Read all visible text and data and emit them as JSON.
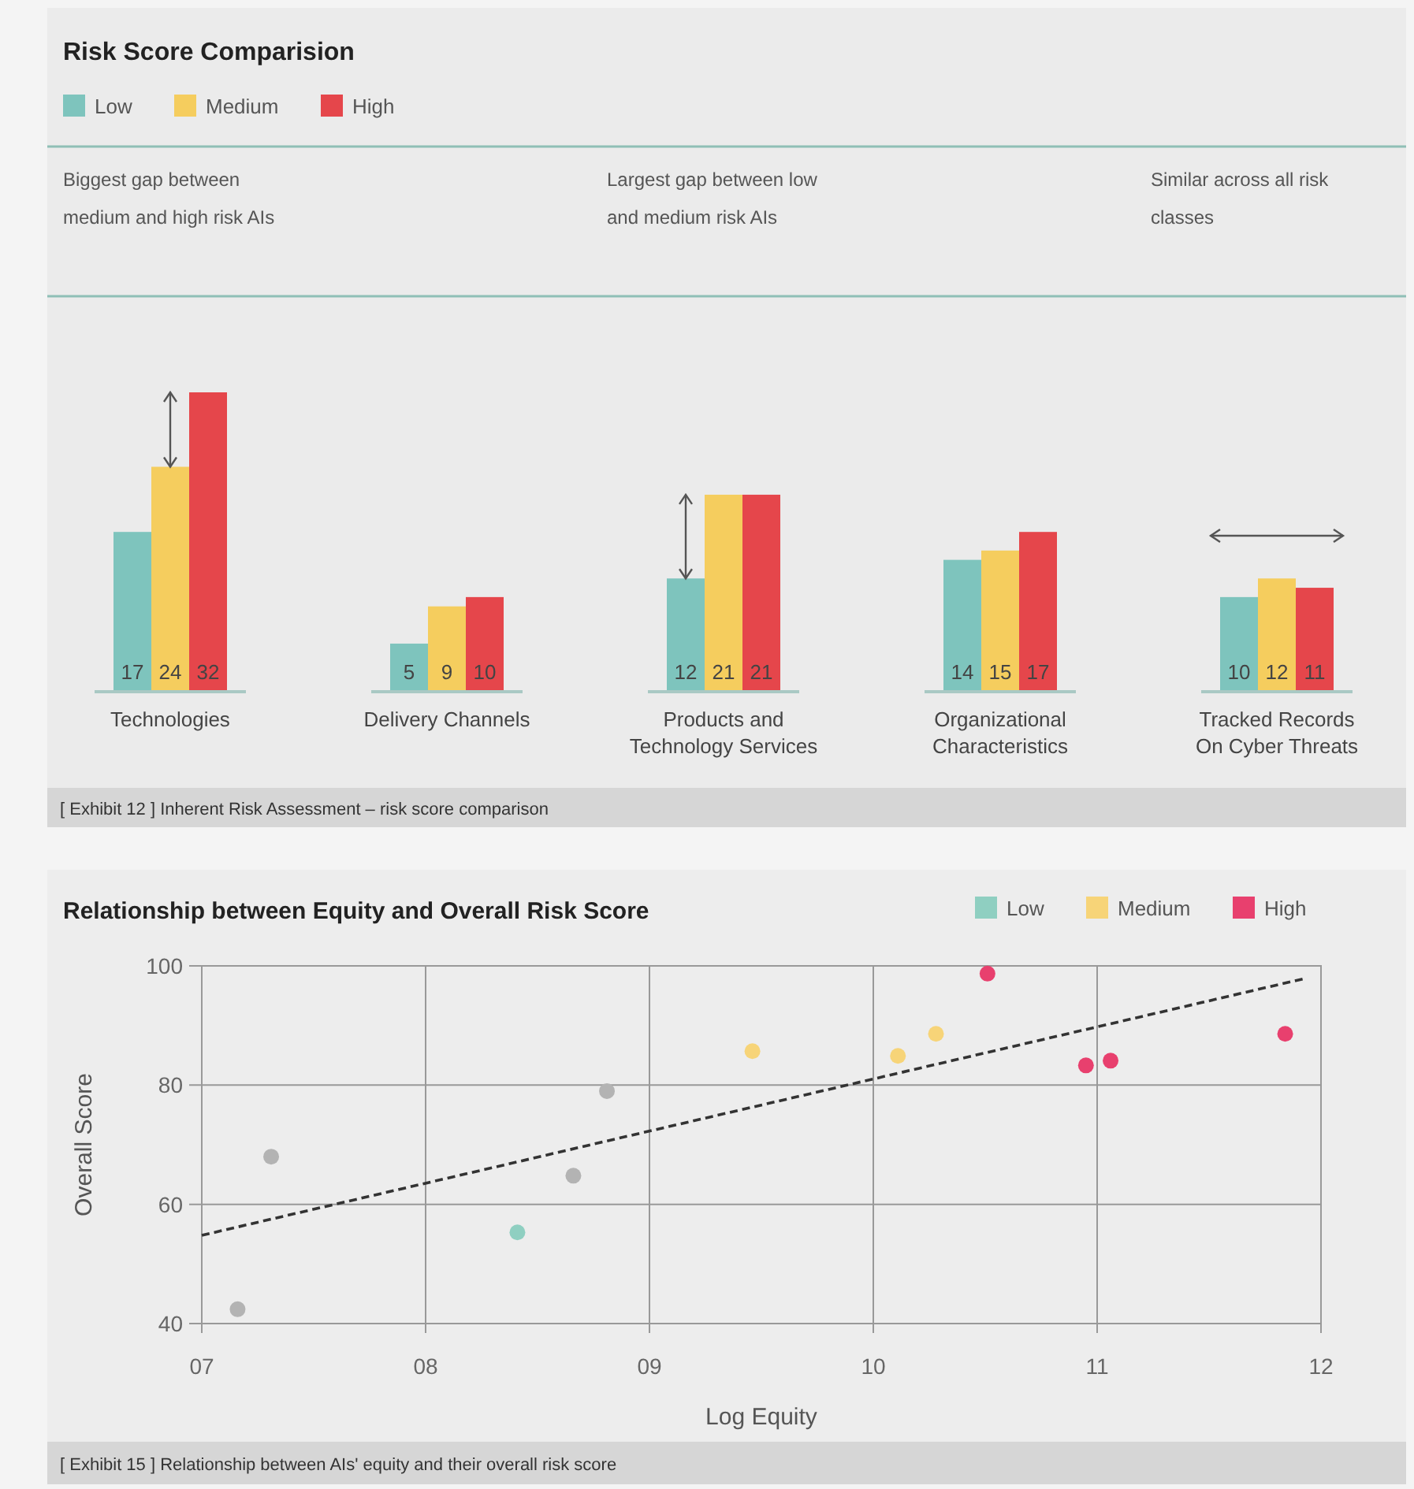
{
  "chart_data": [
    {
      "type": "bar",
      "title": "Risk Score Comparision",
      "categories": [
        "Technologies",
        "Delivery Channels",
        "Products and Technology Services",
        "Organizational Characteristics",
        "Tracked Records On Cyber Threats"
      ],
      "series": [
        {
          "name": "Low",
          "color": "#7ec4bd",
          "values": [
            17,
            5,
            12,
            14,
            10
          ]
        },
        {
          "name": "Medium",
          "color": "#f5cd5e",
          "values": [
            24,
            9,
            21,
            15,
            12
          ]
        },
        {
          "name": "High",
          "color": "#e5464b",
          "values": [
            32,
            10,
            21,
            17,
            11
          ]
        }
      ],
      "data_labels": true,
      "legend": "top left",
      "annotations": [
        "Biggest gap between medium and high risk AIs",
        "Largest gap between low and medium risk AIs",
        "Similar across all risk classes",
        "[ Exhibit 12 ]  Inherent Risk Assessment – risk score comparison"
      ]
    },
    {
      "type": "scatter",
      "title": "Relationship between Equity and Overall Risk Score",
      "xlabel": "Log Equity",
      "ylabel": "Overall Score",
      "xlim": [
        7,
        12
      ],
      "ylim": [
        40,
        100
      ],
      "xticks": [
        {
          "value": 7,
          "label": "07"
        },
        {
          "value": 8,
          "label": "08"
        },
        {
          "value": 9,
          "label": "09"
        },
        10,
        11,
        12
      ],
      "yticks": [
        40,
        60,
        80,
        100
      ],
      "grid": true,
      "legend": "top right",
      "marker": "circle",
      "series": [
        {
          "name": "Low",
          "color": "#8fcfc1",
          "colors": [
            "#b3b3b3",
            "#b3b3b3",
            "#8fcfc1",
            "#b3b3b3",
            "#b3b3b3"
          ],
          "x": [
            7.16,
            7.31,
            8.41,
            8.66,
            8.81
          ],
          "values": [
            42.4,
            68,
            55.3,
            64.8,
            79
          ]
        },
        {
          "name": "Medium",
          "color": "#f7d478",
          "x": [
            9.46,
            10.11,
            10.28
          ],
          "values": [
            85.7,
            84.9,
            88.6
          ]
        },
        {
          "name": "High",
          "color": "#e8406e",
          "x": [
            10.51,
            10.95,
            11.06,
            11.84
          ],
          "values": [
            98.7,
            83.3,
            84.1,
            88.6
          ]
        },
        {
          "type": "line",
          "color": "#333333",
          "line_style": "dashed",
          "marker": "none",
          "x": [
            7,
            11.93
          ],
          "values": [
            54.8,
            97.9
          ]
        }
      ],
      "annotations": [
        "[ Exhibit 15 ]  Relationship between AIs' equity and their overall risk score"
      ]
    }
  ]
}
